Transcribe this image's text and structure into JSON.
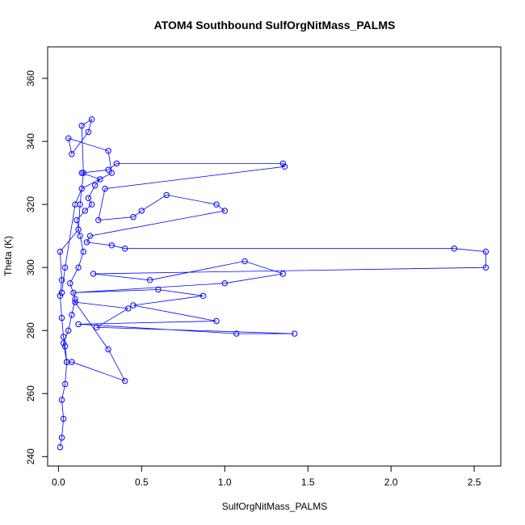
{
  "chart_data": {
    "type": "scatter",
    "title": "ATOM4 Southbound SulfOrgNitMass_PALMS",
    "xlabel": "SulfOrgNitMass_PALMS",
    "ylabel": "Theta (K)",
    "xlim": [
      -0.065,
      2.66
    ],
    "ylim": [
      237,
      370
    ],
    "xticks": [
      0.0,
      0.5,
      1.0,
      1.5,
      2.0,
      2.5
    ],
    "xtick_labels": [
      "0.0",
      "0.5",
      "1.0",
      "1.5",
      "2.0",
      "2.5"
    ],
    "yticks": [
      240,
      260,
      280,
      300,
      320,
      340,
      360
    ],
    "ytick_labels": [
      "240",
      "260",
      "280",
      "300",
      "320",
      "340",
      "360"
    ],
    "grid": false,
    "legend": "none",
    "marker": "open-circle",
    "connected": true,
    "color": "#0000ff",
    "series": [
      {
        "x": [
          0.01,
          0.02,
          0.03,
          0.02,
          0.04,
          0.05,
          0.03,
          0.06,
          0.08,
          0.1,
          0.07,
          0.12,
          0.15,
          0.13,
          0.11,
          0.16,
          0.2,
          0.18,
          0.22,
          0.25,
          0.14,
          0.3,
          0.35,
          1.35,
          1.36,
          0.28,
          0.24,
          0.45,
          0.5,
          0.65,
          0.95,
          1.0,
          0.19,
          0.17,
          0.32,
          0.4,
          2.38,
          2.57,
          2.57,
          0.21,
          0.55,
          1.12,
          1.35,
          1.0,
          0.09,
          0.6,
          0.87,
          0.45,
          0.95,
          0.12,
          1.07,
          1.42,
          0.23,
          0.42,
          0.1,
          0.3,
          0.4,
          0.08,
          0.05,
          0.04,
          0.03,
          0.02,
          0.01,
          0.02,
          0.01,
          0.12,
          0.13,
          0.15,
          0.14,
          0.2,
          0.18,
          0.08,
          0.06,
          0.3,
          0.32,
          0.14,
          0.1,
          0.04,
          0.02
        ],
        "y": [
          243,
          246,
          252,
          258,
          263,
          270,
          276,
          280,
          285,
          290,
          295,
          300,
          305,
          310,
          315,
          318,
          320,
          322,
          326,
          328,
          330,
          331,
          333,
          333,
          332,
          325,
          315,
          316,
          318,
          323,
          320,
          318,
          310,
          308,
          307,
          306,
          306,
          305,
          300,
          298,
          296,
          302,
          298,
          295,
          292,
          293,
          291,
          288,
          283,
          282,
          279,
          279,
          281,
          287,
          289,
          274,
          264,
          270,
          270,
          275,
          278,
          284,
          291,
          296,
          305,
          312,
          320,
          330,
          345,
          347,
          343,
          336,
          341,
          337,
          330,
          325,
          320,
          300,
          292
        ]
      }
    ]
  }
}
